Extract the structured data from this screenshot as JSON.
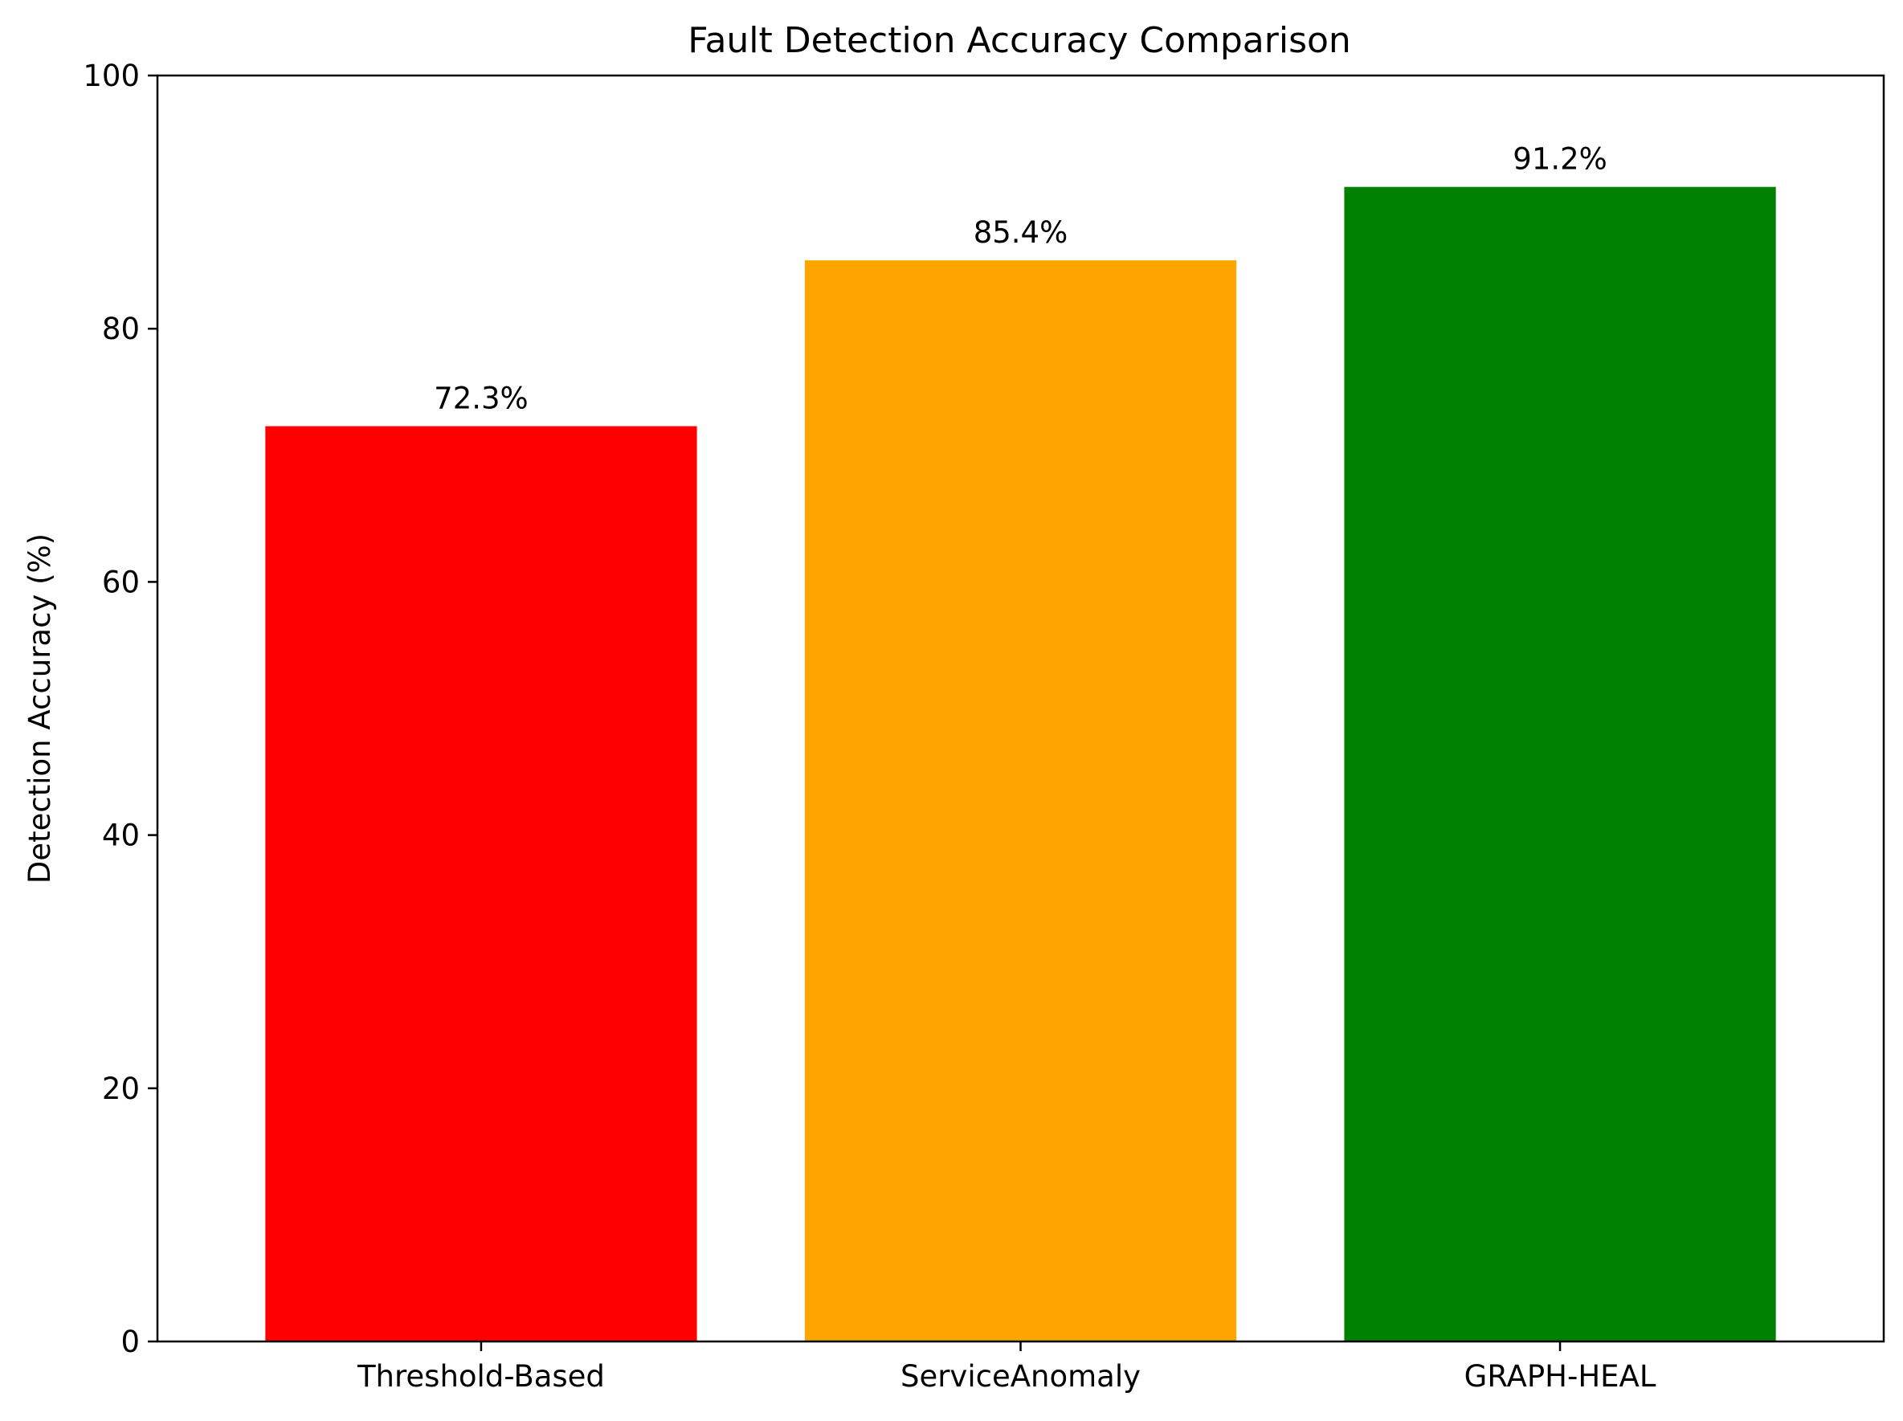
{
  "chart_data": {
    "type": "bar",
    "title": "Fault Detection Accuracy Comparison",
    "xlabel": "",
    "ylabel": "Detection Accuracy (%)",
    "categories": [
      "Threshold-Based",
      "ServiceAnomaly",
      "GRAPH-HEAL"
    ],
    "values": [
      72.3,
      85.4,
      91.2
    ],
    "value_labels": [
      "72.3%",
      "85.4%",
      "91.2%"
    ],
    "colors": [
      "#ff0000",
      "#ffa500",
      "#008000"
    ],
    "ylim": [
      0,
      100
    ],
    "yticks": [
      0,
      20,
      40,
      60,
      80,
      100
    ],
    "ytick_labels": [
      "0",
      "20",
      "40",
      "60",
      "80",
      "100"
    ],
    "grid": false,
    "legend": "none"
  }
}
